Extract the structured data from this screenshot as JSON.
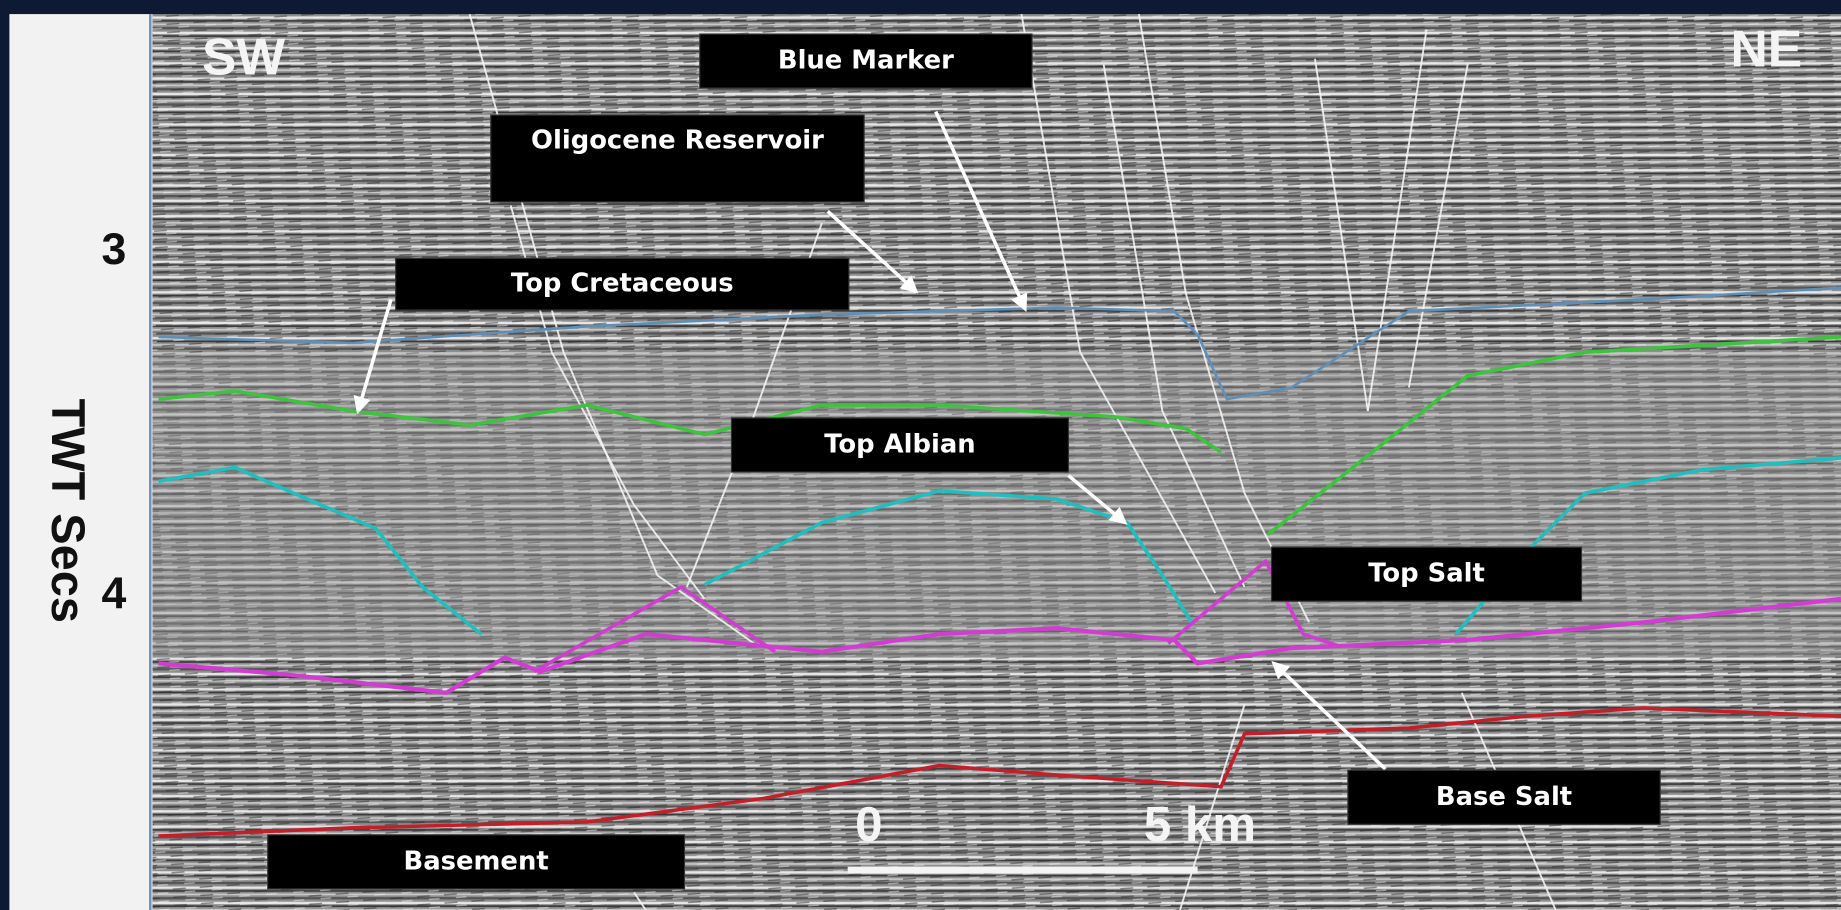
{
  "header": {
    "left_direction": "SW",
    "right_direction": "NE"
  },
  "axis": {
    "title": "TWT Secs",
    "ticks": [
      3,
      4
    ]
  },
  "labels": [
    "Blue Marker",
    "Oligocene Reservoir",
    "Top Cretaceous",
    "Top Albian",
    "Top Salt",
    "Base Salt",
    "Basement"
  ],
  "scale_bar": {
    "start": "0",
    "end": "5 km"
  }
}
